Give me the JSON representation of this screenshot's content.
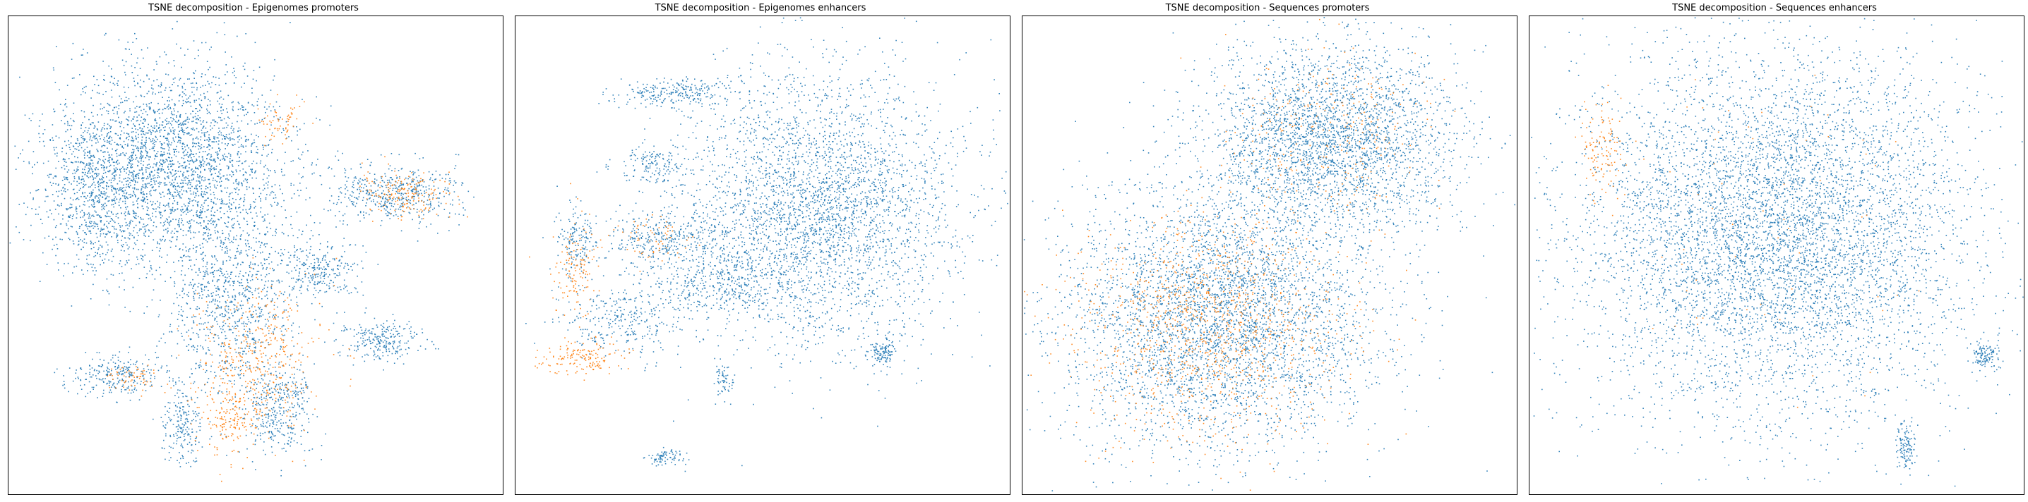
{
  "chart_data": [
    {
      "type": "scatter",
      "title": "TSNE decomposition - Epigenomes promoters",
      "xlabel": "",
      "ylabel": "",
      "ticks": "hidden",
      "grid": false,
      "legend": "none",
      "series": [
        {
          "color": "#1f77b4",
          "clusters": [
            {
              "cx": 0.33,
              "cy": 0.3,
              "rx": 0.23,
              "ry": 0.2,
              "n": 2600
            },
            {
              "cx": 0.18,
              "cy": 0.38,
              "rx": 0.12,
              "ry": 0.15,
              "n": 700
            },
            {
              "cx": 0.45,
              "cy": 0.58,
              "rx": 0.14,
              "ry": 0.22,
              "n": 1100
            },
            {
              "cx": 0.78,
              "cy": 0.37,
              "rx": 0.13,
              "ry": 0.06,
              "n": 500
            },
            {
              "cx": 0.22,
              "cy": 0.75,
              "rx": 0.09,
              "ry": 0.05,
              "n": 250
            },
            {
              "cx": 0.75,
              "cy": 0.68,
              "rx": 0.08,
              "ry": 0.04,
              "n": 250
            },
            {
              "cx": 0.63,
              "cy": 0.53,
              "rx": 0.08,
              "ry": 0.06,
              "n": 250
            },
            {
              "cx": 0.35,
              "cy": 0.85,
              "rx": 0.04,
              "ry": 0.09,
              "n": 200
            },
            {
              "cx": 0.55,
              "cy": 0.82,
              "rx": 0.07,
              "ry": 0.1,
              "n": 350
            }
          ]
        },
        {
          "color": "#ff7f0e",
          "clusters": [
            {
              "cx": 0.5,
              "cy": 0.72,
              "rx": 0.12,
              "ry": 0.15,
              "n": 450
            },
            {
              "cx": 0.8,
              "cy": 0.37,
              "rx": 0.09,
              "ry": 0.05,
              "n": 180
            },
            {
              "cx": 0.55,
              "cy": 0.22,
              "rx": 0.04,
              "ry": 0.05,
              "n": 60
            },
            {
              "cx": 0.25,
              "cy": 0.76,
              "rx": 0.05,
              "ry": 0.03,
              "n": 60
            },
            {
              "cx": 0.45,
              "cy": 0.85,
              "rx": 0.05,
              "ry": 0.06,
              "n": 120
            }
          ]
        }
      ]
    },
    {
      "type": "scatter",
      "title": "TSNE decomposition - Epigenomes enhancers",
      "xlabel": "",
      "ylabel": "",
      "ticks": "hidden",
      "grid": false,
      "legend": "none",
      "series": [
        {
          "color": "#1f77b4",
          "clusters": [
            {
              "cx": 0.62,
              "cy": 0.4,
              "rx": 0.28,
              "ry": 0.28,
              "n": 3400
            },
            {
              "cx": 0.32,
              "cy": 0.16,
              "rx": 0.12,
              "ry": 0.03,
              "n": 250
            },
            {
              "cx": 0.28,
              "cy": 0.31,
              "rx": 0.08,
              "ry": 0.04,
              "n": 150
            },
            {
              "cx": 0.3,
              "cy": 0.46,
              "rx": 0.14,
              "ry": 0.06,
              "n": 350
            },
            {
              "cx": 0.22,
              "cy": 0.64,
              "rx": 0.14,
              "ry": 0.07,
              "n": 300
            },
            {
              "cx": 0.42,
              "cy": 0.56,
              "rx": 0.16,
              "ry": 0.06,
              "n": 400
            },
            {
              "cx": 0.74,
              "cy": 0.7,
              "rx": 0.03,
              "ry": 0.03,
              "n": 120
            },
            {
              "cx": 0.42,
              "cy": 0.76,
              "rx": 0.02,
              "ry": 0.04,
              "n": 60
            },
            {
              "cx": 0.3,
              "cy": 0.92,
              "rx": 0.04,
              "ry": 0.02,
              "n": 80
            },
            {
              "cx": 0.12,
              "cy": 0.47,
              "rx": 0.04,
              "ry": 0.08,
              "n": 150
            }
          ]
        },
        {
          "color": "#ff7f0e",
          "clusters": [
            {
              "cx": 0.12,
              "cy": 0.52,
              "rx": 0.05,
              "ry": 0.1,
              "n": 130
            },
            {
              "cx": 0.14,
              "cy": 0.71,
              "rx": 0.08,
              "ry": 0.04,
              "n": 160
            },
            {
              "cx": 0.28,
              "cy": 0.46,
              "rx": 0.08,
              "ry": 0.05,
              "n": 60
            }
          ]
        }
      ]
    },
    {
      "type": "scatter",
      "title": "TSNE decomposition - Sequences promoters",
      "xlabel": "",
      "ylabel": "",
      "ticks": "hidden",
      "grid": false,
      "legend": "none",
      "series": [
        {
          "color": "#1f77b4",
          "clusters": [
            {
              "cx": 0.4,
              "cy": 0.63,
              "rx": 0.32,
              "ry": 0.27,
              "n": 4200
            },
            {
              "cx": 0.62,
              "cy": 0.25,
              "rx": 0.25,
              "ry": 0.2,
              "n": 3000
            }
          ]
        },
        {
          "color": "#ff7f0e",
          "clusters": [
            {
              "cx": 0.38,
              "cy": 0.65,
              "rx": 0.28,
              "ry": 0.23,
              "n": 1100
            },
            {
              "cx": 0.62,
              "cy": 0.25,
              "rx": 0.2,
              "ry": 0.16,
              "n": 250
            }
          ]
        }
      ]
    },
    {
      "type": "scatter",
      "title": "TSNE decomposition - Sequences enhancers",
      "xlabel": "",
      "ylabel": "",
      "ticks": "hidden",
      "grid": false,
      "legend": "none",
      "series": [
        {
          "color": "#1f77b4",
          "clusters": [
            {
              "cx": 0.5,
              "cy": 0.45,
              "rx": 0.4,
              "ry": 0.38,
              "n": 6500
            },
            {
              "cx": 0.92,
              "cy": 0.71,
              "rx": 0.03,
              "ry": 0.03,
              "n": 120
            },
            {
              "cx": 0.76,
              "cy": 0.9,
              "rx": 0.02,
              "ry": 0.05,
              "n": 120
            }
          ]
        },
        {
          "color": "#ff7f0e",
          "clusters": [
            {
              "cx": 0.15,
              "cy": 0.28,
              "rx": 0.05,
              "ry": 0.1,
              "n": 120
            },
            {
              "cx": 0.45,
              "cy": 0.45,
              "rx": 0.35,
              "ry": 0.35,
              "n": 60
            }
          ]
        }
      ]
    }
  ]
}
